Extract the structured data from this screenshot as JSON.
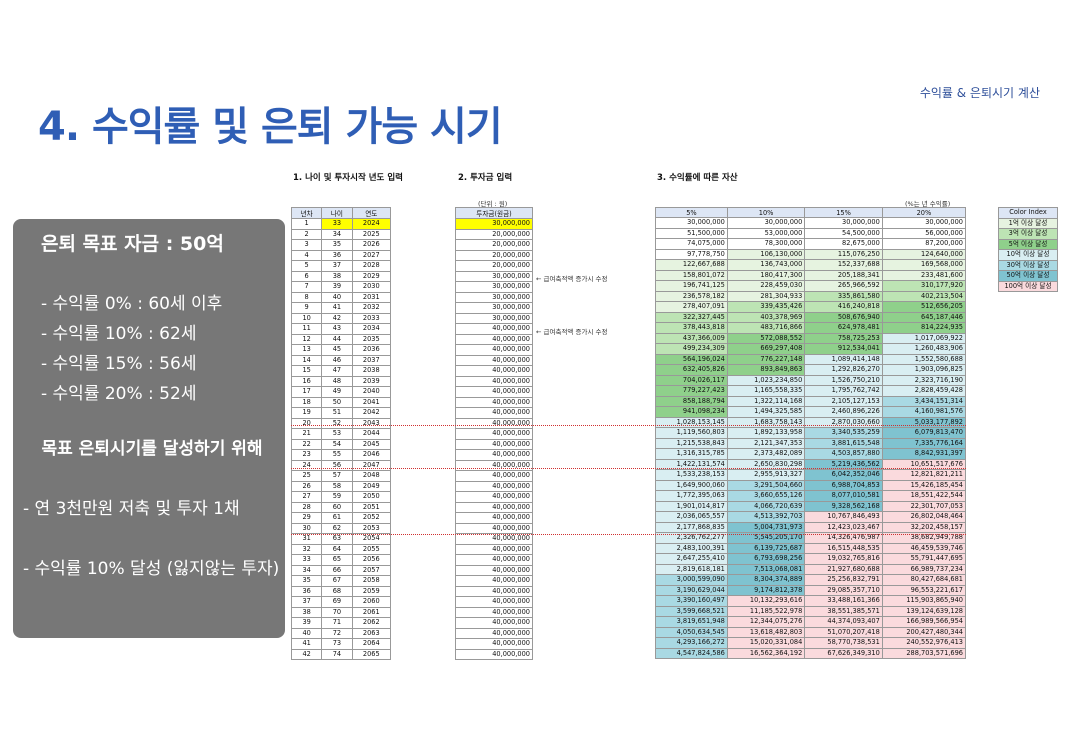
{
  "header": {
    "top_right": "수익률 & 은퇴시기 계산",
    "title": "4. 수익률 및 은퇴 가능 시기"
  },
  "panel": {
    "goal": "은퇴 목표 자금 : 50억",
    "items": [
      "- 수익률    0% : 60세 이후",
      "- 수익률 10% : 62세",
      "- 수익률 15% : 56세",
      "- 수익률 20% : 52세"
    ],
    "block_title": "목표 은퇴시기를 달성하기 위해",
    "notes": [
      "- 연 3천만원 저축 및 투자 1채",
      "- 수익률 10% 달성 (잃지않는 투자)"
    ]
  },
  "sections": {
    "s1": "1. 나이 및 투자시작 년도 입력",
    "s2": "2. 투자금 입력",
    "s3": "3. 수익률에 따른 자산",
    "unit1": "(단위 : 원)",
    "unit2": "(%는 년 수익률)"
  },
  "table1": {
    "headers": [
      "년차",
      "나이",
      "연도"
    ]
  },
  "table2": {
    "header": "투자금(원금)",
    "note": "← 급여축적액 증가시 수정"
  },
  "table3": {
    "headers": [
      "5%",
      "10%",
      "15%",
      "20%"
    ]
  },
  "legend": {
    "title": "Color Index",
    "items": [
      {
        "label": "1억 이상 달성",
        "color": "#e6f3e0"
      },
      {
        "label": "3억 이상 달성",
        "color": "#bde4b4"
      },
      {
        "label": "5억 이상 달성",
        "color": "#8fd08b"
      },
      {
        "label": "10억 이상 달성",
        "color": "#d9eef2"
      },
      {
        "label": "30억 이상 달성",
        "color": "#a9d9e3"
      },
      {
        "label": "50억 이상 달성",
        "color": "#7fc3d0"
      },
      {
        "label": "100억 이상 달성",
        "color": "#fadadd"
      }
    ]
  },
  "rows": [
    [
      "1",
      "33",
      "2024",
      "30,000,000",
      "30,000,000",
      "30,000,000",
      "30,000,000",
      "30,000,000"
    ],
    [
      "2",
      "34",
      "2025",
      "20,000,000",
      "51,500,000",
      "53,000,000",
      "54,500,000",
      "56,000,000"
    ],
    [
      "3",
      "35",
      "2026",
      "20,000,000",
      "74,075,000",
      "78,300,000",
      "82,675,000",
      "87,200,000"
    ],
    [
      "4",
      "36",
      "2027",
      "20,000,000",
      "97,778,750",
      "106,130,000",
      "115,076,250",
      "124,640,000"
    ],
    [
      "5",
      "37",
      "2028",
      "20,000,000",
      "122,667,688",
      "136,743,000",
      "152,337,688",
      "169,568,000"
    ],
    [
      "6",
      "38",
      "2029",
      "30,000,000",
      "158,801,072",
      "180,417,300",
      "205,188,341",
      "233,481,600"
    ],
    [
      "7",
      "39",
      "2030",
      "30,000,000",
      "196,741,125",
      "228,459,030",
      "265,966,592",
      "310,177,920"
    ],
    [
      "8",
      "40",
      "2031",
      "30,000,000",
      "236,578,182",
      "281,304,933",
      "335,861,580",
      "402,213,504"
    ],
    [
      "9",
      "41",
      "2032",
      "30,000,000",
      "278,407,091",
      "339,435,426",
      "416,240,818",
      "512,656,205"
    ],
    [
      "10",
      "42",
      "2033",
      "30,000,000",
      "322,327,445",
      "403,378,969",
      "508,676,940",
      "645,187,446"
    ],
    [
      "11",
      "43",
      "2034",
      "40,000,000",
      "378,443,818",
      "483,716,866",
      "624,978,481",
      "814,224,935"
    ],
    [
      "12",
      "44",
      "2035",
      "40,000,000",
      "437,366,009",
      "572,088,552",
      "758,725,253",
      "1,017,069,922"
    ],
    [
      "13",
      "45",
      "2036",
      "40,000,000",
      "499,234,309",
      "669,297,408",
      "912,534,041",
      "1,260,483,906"
    ],
    [
      "14",
      "46",
      "2037",
      "40,000,000",
      "564,196,024",
      "776,227,148",
      "1,089,414,148",
      "1,552,580,688"
    ],
    [
      "15",
      "47",
      "2038",
      "40,000,000",
      "632,405,826",
      "893,849,863",
      "1,292,826,270",
      "1,903,096,825"
    ],
    [
      "16",
      "48",
      "2039",
      "40,000,000",
      "704,026,117",
      "1,023,234,850",
      "1,526,750,210",
      "2,323,716,190"
    ],
    [
      "17",
      "49",
      "2040",
      "40,000,000",
      "779,227,423",
      "1,165,558,335",
      "1,795,762,742",
      "2,828,459,428"
    ],
    [
      "18",
      "50",
      "2041",
      "40,000,000",
      "858,188,794",
      "1,322,114,168",
      "2,105,127,153",
      "3,434,151,314"
    ],
    [
      "19",
      "51",
      "2042",
      "40,000,000",
      "941,098,234",
      "1,494,325,585",
      "2,460,896,226",
      "4,160,981,576"
    ],
    [
      "20",
      "52",
      "2043",
      "40,000,000",
      "1,028,153,145",
      "1,683,758,143",
      "2,870,030,660",
      "5,033,177,892"
    ],
    [
      "21",
      "53",
      "2044",
      "40,000,000",
      "1,119,560,803",
      "1,892,133,958",
      "3,340,535,259",
      "6,079,813,470"
    ],
    [
      "22",
      "54",
      "2045",
      "40,000,000",
      "1,215,538,843",
      "2,121,347,353",
      "3,881,615,548",
      "7,335,776,164"
    ],
    [
      "23",
      "55",
      "2046",
      "40,000,000",
      "1,316,315,785",
      "2,373,482,089",
      "4,503,857,880",
      "8,842,931,397"
    ],
    [
      "24",
      "56",
      "2047",
      "40,000,000",
      "1,422,131,574",
      "2,650,830,298",
      "5,219,436,562",
      "10,651,517,676"
    ],
    [
      "25",
      "57",
      "2048",
      "40,000,000",
      "1,533,238,153",
      "2,955,913,327",
      "6,042,352,046",
      "12,821,821,211"
    ],
    [
      "26",
      "58",
      "2049",
      "40,000,000",
      "1,649,900,060",
      "3,291,504,660",
      "6,988,704,853",
      "15,426,185,454"
    ],
    [
      "27",
      "59",
      "2050",
      "40,000,000",
      "1,772,395,063",
      "3,660,655,126",
      "8,077,010,581",
      "18,551,422,544"
    ],
    [
      "28",
      "60",
      "2051",
      "40,000,000",
      "1,901,014,817",
      "4,066,720,639",
      "9,328,562,168",
      "22,301,707,053"
    ],
    [
      "29",
      "61",
      "2052",
      "40,000,000",
      "2,036,065,557",
      "4,513,392,703",
      "10,767,846,493",
      "26,802,048,464"
    ],
    [
      "30",
      "62",
      "2053",
      "40,000,000",
      "2,177,868,835",
      "5,004,731,973",
      "12,423,023,467",
      "32,202,458,157"
    ],
    [
      "31",
      "63",
      "2054",
      "40,000,000",
      "2,326,762,277",
      "5,545,205,170",
      "14,326,476,987",
      "38,682,949,788"
    ],
    [
      "32",
      "64",
      "2055",
      "40,000,000",
      "2,483,100,391",
      "6,139,725,687",
      "16,515,448,535",
      "46,459,539,746"
    ],
    [
      "33",
      "65",
      "2056",
      "40,000,000",
      "2,647,255,410",
      "6,793,698,256",
      "19,032,765,816",
      "55,791,447,695"
    ],
    [
      "34",
      "66",
      "2057",
      "40,000,000",
      "2,819,618,181",
      "7,513,068,081",
      "21,927,680,688",
      "66,989,737,234"
    ],
    [
      "35",
      "67",
      "2058",
      "40,000,000",
      "3,000,599,090",
      "8,304,374,889",
      "25,256,832,791",
      "80,427,684,681"
    ],
    [
      "36",
      "68",
      "2059",
      "40,000,000",
      "3,190,629,044",
      "9,174,812,378",
      "29,085,357,710",
      "96,553,221,617"
    ],
    [
      "37",
      "69",
      "2060",
      "40,000,000",
      "3,390,160,497",
      "10,132,293,616",
      "33,488,161,366",
      "115,903,865,940"
    ],
    [
      "38",
      "70",
      "2061",
      "40,000,000",
      "3,599,668,521",
      "11,185,522,978",
      "38,551,385,571",
      "139,124,639,128"
    ],
    [
      "39",
      "71",
      "2062",
      "40,000,000",
      "3,819,651,948",
      "12,344,075,276",
      "44,374,093,407",
      "166,989,566,954"
    ],
    [
      "40",
      "72",
      "2063",
      "40,000,000",
      "4,050,634,545",
      "13,618,482,803",
      "51,070,207,418",
      "200,427,480,344"
    ],
    [
      "41",
      "73",
      "2064",
      "40,000,000",
      "4,293,166,272",
      "15,020,331,084",
      "58,770,738,531",
      "240,552,976,413"
    ],
    [
      "42",
      "74",
      "2065",
      "40,000,000",
      "4,547,824,586",
      "16,562,364,192",
      "67,626,349,310",
      "288,703,571,696"
    ]
  ]
}
